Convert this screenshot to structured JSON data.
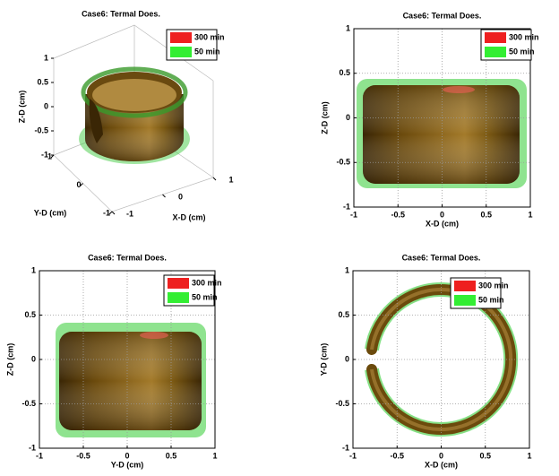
{
  "chart_data": [
    {
      "type": "isosurface3d",
      "title": "Case6: Termal Does.",
      "xlabel": "X-D (cm)",
      "ylabel": "Y-D (cm)",
      "zlabel": "Z-D (cm)",
      "xlim": [
        -1,
        1
      ],
      "ylim": [
        -1,
        1
      ],
      "zlim": [
        -1,
        1
      ],
      "xticks": [
        -1,
        0,
        1
      ],
      "yticks": [
        -1,
        0,
        1
      ],
      "zticks": [
        -1,
        -0.5,
        0,
        0.5,
        1
      ],
      "grid": true,
      "series": [
        {
          "name": "300 min",
          "color": "#ee2020"
        },
        {
          "name": "50 min",
          "color": "#33ee33"
        }
      ]
    },
    {
      "type": "isosurface",
      "title": "Case6: Termal Does.",
      "xlabel": "X-D (cm)",
      "ylabel": "Z-D (cm)",
      "xlim": [
        -1,
        1
      ],
      "ylim": [
        -1,
        1
      ],
      "xticks": [
        -1,
        -0.5,
        0,
        0.5,
        1
      ],
      "yticks": [
        -1,
        -0.5,
        0,
        0.5,
        1
      ],
      "grid": true,
      "series": [
        {
          "name": "300 min",
          "color": "#ee2020"
        },
        {
          "name": "50 min",
          "color": "#33ee33"
        }
      ]
    },
    {
      "type": "isosurface",
      "title": "Case6: Termal Does.",
      "xlabel": "Y-D (cm)",
      "ylabel": "Z-D (cm)",
      "xlim": [
        -1,
        1
      ],
      "ylim": [
        -1,
        1
      ],
      "xticks": [
        -1,
        -0.5,
        0,
        0.5,
        1
      ],
      "yticks": [
        -1,
        -0.5,
        0,
        0.5,
        1
      ],
      "grid": true,
      "series": [
        {
          "name": "300 min",
          "color": "#ee2020"
        },
        {
          "name": "50 min",
          "color": "#33ee33"
        }
      ]
    },
    {
      "type": "isosurface",
      "title": "Case6: Termal Does.",
      "xlabel": "X-D (cm)",
      "ylabel": "Y-D (cm)",
      "xlim": [
        -1,
        1
      ],
      "ylim": [
        -1,
        1
      ],
      "xticks": [
        -1,
        -0.5,
        0,
        0.5,
        1
      ],
      "yticks": [
        -1,
        -0.5,
        0,
        0.5,
        1
      ],
      "grid": true,
      "series": [
        {
          "name": "300 min",
          "color": "#ee2020"
        },
        {
          "name": "50 min",
          "color": "#33ee33"
        }
      ]
    }
  ]
}
